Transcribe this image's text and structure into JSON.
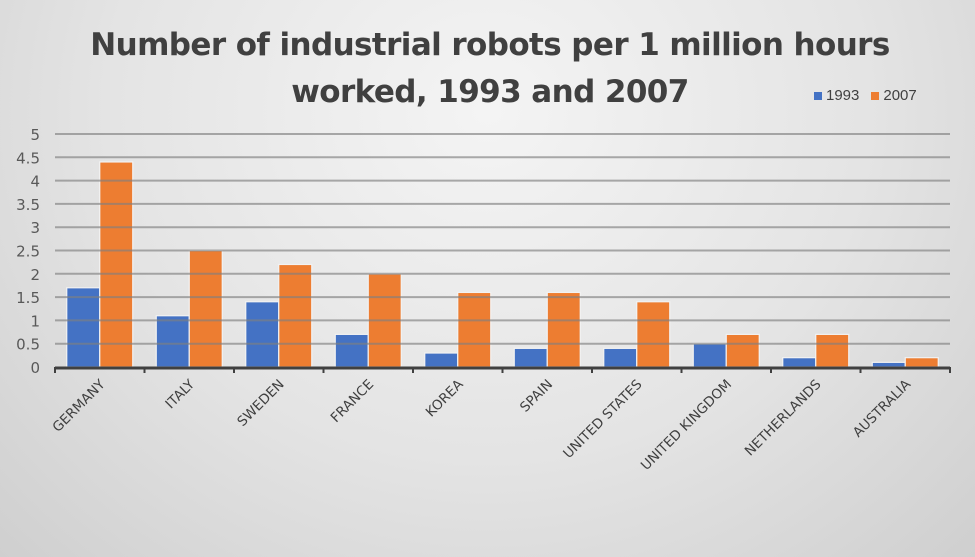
{
  "chart_data": {
    "type": "bar",
    "title": "Number of industrial robots per 1 million hours worked, 1993 and 2007",
    "title_lines": [
      "Number of industrial robots per 1 million hours",
      "worked, 1993 and 2007"
    ],
    "xlabel": "",
    "ylabel": "",
    "ylim": [
      0,
      5
    ],
    "yticks": [
      "0",
      "0.5",
      "1",
      "1.5",
      "2",
      "2.5",
      "3",
      "3.5",
      "4",
      "4.5",
      "5"
    ],
    "grid": true,
    "legend_position": "top-right",
    "categories": [
      "GERMANY",
      "ITALY",
      "SWEDEN",
      "FRANCE",
      "KOREA",
      "SPAIN",
      "UNITED STATES",
      "UNITED KINGDOM",
      "NETHERLANDS",
      "AUSTRALIA"
    ],
    "series": [
      {
        "name": "1993",
        "color": "#4472C4",
        "values": [
          1.7,
          1.1,
          1.4,
          0.7,
          0.3,
          0.4,
          0.4,
          0.5,
          0.2,
          0.1
        ]
      },
      {
        "name": "2007",
        "color": "#ED7D31",
        "values": [
          4.4,
          2.5,
          2.2,
          2.0,
          1.6,
          1.6,
          1.4,
          0.7,
          0.7,
          0.2
        ]
      }
    ]
  },
  "legend": {
    "items": [
      {
        "label": "1993",
        "color": "#4472C4"
      },
      {
        "label": "2007",
        "color": "#ED7D31"
      }
    ]
  }
}
